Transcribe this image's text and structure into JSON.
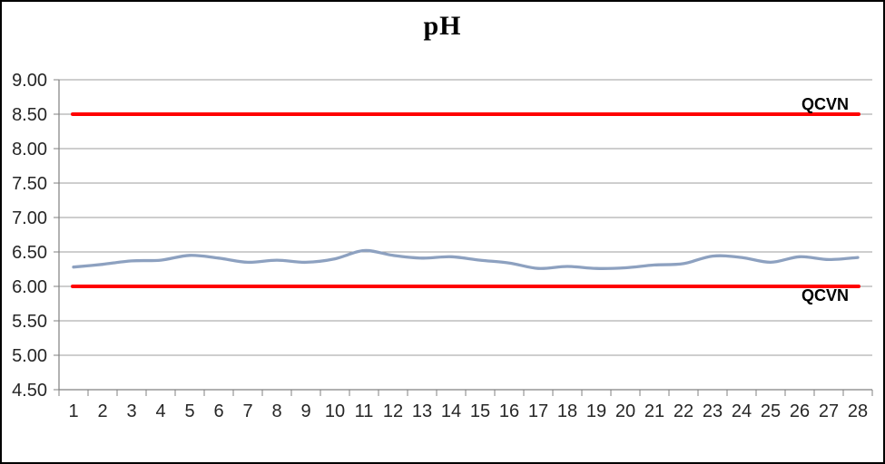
{
  "page": {
    "background": "#FFFFFF",
    "border_color": "#000000"
  },
  "chart_data": {
    "type": "line",
    "title": "pH",
    "categories": [
      "1",
      "2",
      "3",
      "4",
      "5",
      "6",
      "7",
      "8",
      "9",
      "10",
      "11",
      "12",
      "13",
      "14",
      "15",
      "16",
      "17",
      "18",
      "19",
      "20",
      "21",
      "22",
      "23",
      "24",
      "25",
      "26",
      "27",
      "28"
    ],
    "series": [
      {
        "name": "pH",
        "color": "#8DA1C0",
        "smooth": true,
        "line_width": 3.3,
        "values": [
          6.28,
          6.32,
          6.37,
          6.38,
          6.45,
          6.41,
          6.35,
          6.38,
          6.35,
          6.4,
          6.52,
          6.45,
          6.41,
          6.43,
          6.38,
          6.34,
          6.26,
          6.29,
          6.26,
          6.27,
          6.31,
          6.33,
          6.44,
          6.42,
          6.35,
          6.43,
          6.39,
          6.42
        ]
      }
    ],
    "limit_lines": [
      {
        "label": "QCVN",
        "value": 8.5,
        "color": "#FF0000",
        "line_width": 4,
        "label_side": "above"
      },
      {
        "label": "QCVN",
        "value": 6.0,
        "color": "#FF0000",
        "line_width": 4,
        "label_side": "below"
      }
    ],
    "ylim": [
      4.5,
      9.0
    ],
    "ytick_step": 0.5,
    "ytick_labels": [
      "9.00",
      "8.50",
      "8.00",
      "7.50",
      "7.00",
      "6.50",
      "6.00",
      "5.50",
      "5.00",
      "4.50"
    ],
    "xlabel": "",
    "ylabel": "",
    "grid": true,
    "legend": "none",
    "colors": {
      "grid": "#9C9C9C",
      "axis": "#808080",
      "tick_text": "#262626",
      "title_text": "#000000"
    }
  }
}
